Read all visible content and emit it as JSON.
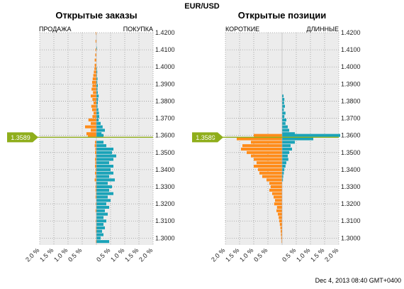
{
  "chart_data": {
    "type": "bar",
    "orientation": "horizontal",
    "title": "EUR/USD",
    "footer": "Dec 4, 2013 08:40 GMT+0400",
    "current_price": 1.3589,
    "current_price_label": "1.3589",
    "colors": {
      "left_side": "#ff8c1a",
      "right_side": "#1aa3b8",
      "price_line": "#8fae1b",
      "panel_bg": "#ececec"
    },
    "y_axis": {
      "range": [
        1.296,
        1.42
      ],
      "ticks": [
        1.42,
        1.41,
        1.4,
        1.39,
        1.38,
        1.37,
        1.36,
        1.35,
        1.34,
        1.33,
        1.32,
        1.31,
        1.3
      ],
      "tick_labels": [
        "1.4200",
        "1.4100",
        "1.4000",
        "1.3900",
        "1.3800",
        "1.3700",
        "1.3600",
        "1.3500",
        "1.3400",
        "1.3300",
        "1.3200",
        "1.3100",
        "1.3000"
      ]
    },
    "x_axis": {
      "range": [
        -2.0,
        2.0
      ],
      "ticks": [
        -2.0,
        -1.5,
        -1.0,
        -0.5,
        0.5,
        1.0,
        1.5,
        2.0
      ],
      "tick_labels": [
        "2.0 %",
        "1.5 %",
        "1.0 %",
        "0.5 %",
        "0.5 %",
        "1.0 %",
        "1.5 %",
        "2.0 %"
      ]
    },
    "grid": true,
    "panels": [
      {
        "title": "Открытые заказы",
        "left_label": "ПРОДАЖА",
        "right_label": "ПОКУПКА",
        "series": [
          {
            "name": "ПРОДАЖА",
            "points": [
              [
                1.4195,
                0.02
              ],
              [
                1.415,
                0.03
              ],
              [
                1.41,
                0.03
              ],
              [
                1.407,
                0.04
              ],
              [
                1.404,
                0.06
              ],
              [
                1.401,
                0.06
              ],
              [
                1.399,
                0.07
              ],
              [
                1.397,
                0.09
              ],
              [
                1.395,
                0.11
              ],
              [
                1.393,
                0.13
              ],
              [
                1.391,
                0.15
              ],
              [
                1.389,
                0.14
              ],
              [
                1.387,
                0.17
              ],
              [
                1.385,
                0.12
              ],
              [
                1.383,
                0.2
              ],
              [
                1.381,
                0.14
              ],
              [
                1.379,
                0.1
              ],
              [
                1.377,
                0.18
              ],
              [
                1.375,
                0.15
              ],
              [
                1.373,
                0.1
              ],
              [
                1.371,
                0.14
              ],
              [
                1.369,
                0.28
              ],
              [
                1.367,
                0.2
              ],
              [
                1.365,
                0.4
              ],
              [
                1.363,
                0.2
              ],
              [
                1.361,
                0.35
              ],
              [
                1.36,
                0.3
              ],
              [
                1.356,
                0.05
              ],
              [
                1.354,
                0.06
              ],
              [
                1.352,
                0.04
              ],
              [
                1.35,
                0.05
              ],
              [
                1.348,
                0.03
              ],
              [
                1.346,
                0.05
              ],
              [
                1.344,
                0.04
              ],
              [
                1.342,
                0.05
              ],
              [
                1.34,
                0.03
              ],
              [
                1.338,
                0.05
              ],
              [
                1.336,
                0.03
              ],
              [
                1.334,
                0.06
              ],
              [
                1.332,
                0.02
              ],
              [
                1.33,
                0.03
              ],
              [
                1.328,
                0.03
              ],
              [
                1.326,
                0.02
              ],
              [
                1.324,
                0.03
              ],
              [
                1.322,
                0.01
              ],
              [
                1.32,
                0.02
              ],
              [
                1.318,
                0.01
              ],
              [
                1.316,
                0.03
              ],
              [
                1.314,
                0.01
              ],
              [
                1.312,
                0.01
              ],
              [
                1.31,
                0.02
              ],
              [
                1.308,
                0.01
              ],
              [
                1.306,
                0.02
              ],
              [
                1.304,
                0.02
              ],
              [
                1.302,
                0.01
              ],
              [
                1.3,
                0.01
              ],
              [
                1.298,
                0.02
              ]
            ]
          },
          {
            "name": "ПОКУПКА",
            "points": [
              [
                1.411,
                0.02
              ],
              [
                1.399,
                0.02
              ],
              [
                1.397,
                0.03
              ],
              [
                1.395,
                0.02
              ],
              [
                1.393,
                0.04
              ],
              [
                1.391,
                0.03
              ],
              [
                1.389,
                0.05
              ],
              [
                1.387,
                0.04
              ],
              [
                1.385,
                0.05
              ],
              [
                1.383,
                0.08
              ],
              [
                1.381,
                0.06
              ],
              [
                1.379,
                0.05
              ],
              [
                1.377,
                0.04
              ],
              [
                1.375,
                0.07
              ],
              [
                1.373,
                0.09
              ],
              [
                1.371,
                0.1
              ],
              [
                1.369,
                0.08
              ],
              [
                1.367,
                0.15
              ],
              [
                1.365,
                0.22
              ],
              [
                1.363,
                0.3
              ],
              [
                1.361,
                0.18
              ],
              [
                1.36,
                0.25
              ],
              [
                1.356,
                0.25
              ],
              [
                1.354,
                0.35
              ],
              [
                1.352,
                0.6
              ],
              [
                1.35,
                0.55
              ],
              [
                1.348,
                0.7
              ],
              [
                1.346,
                0.6
              ],
              [
                1.344,
                0.45
              ],
              [
                1.342,
                0.6
              ],
              [
                1.34,
                0.5
              ],
              [
                1.338,
                0.6
              ],
              [
                1.336,
                0.45
              ],
              [
                1.334,
                0.65
              ],
              [
                1.332,
                0.4
              ],
              [
                1.33,
                0.55
              ],
              [
                1.328,
                0.45
              ],
              [
                1.326,
                0.6
              ],
              [
                1.324,
                0.4
              ],
              [
                1.322,
                0.5
              ],
              [
                1.32,
                0.35
              ],
              [
                1.318,
                0.45
              ],
              [
                1.316,
                0.3
              ],
              [
                1.314,
                0.4
              ],
              [
                1.312,
                0.25
              ],
              [
                1.31,
                0.35
              ],
              [
                1.308,
                0.25
              ],
              [
                1.306,
                0.3
              ],
              [
                1.304,
                0.2
              ],
              [
                1.302,
                0.25
              ],
              [
                1.3,
                0.15
              ],
              [
                1.298,
                0.45
              ]
            ]
          }
        ]
      },
      {
        "title": "Открытые позиции",
        "left_label": "КОРОТКИЕ",
        "right_label": "ДЛИННЫЕ",
        "series": [
          {
            "name": "КОРОТКИЕ",
            "points": [
              [
                1.36,
                1.0
              ],
              [
                1.358,
                1.6
              ],
              [
                1.356,
                1.1
              ],
              [
                1.354,
                1.4
              ],
              [
                1.352,
                1.45
              ],
              [
                1.35,
                1.25
              ],
              [
                1.348,
                1.1
              ],
              [
                1.346,
                1.0
              ],
              [
                1.344,
                0.9
              ],
              [
                1.342,
                1.0
              ],
              [
                1.34,
                0.85
              ],
              [
                1.338,
                0.8
              ],
              [
                1.336,
                0.7
              ],
              [
                1.334,
                0.55
              ],
              [
                1.332,
                0.45
              ],
              [
                1.33,
                0.4
              ],
              [
                1.328,
                0.45
              ],
              [
                1.326,
                0.35
              ],
              [
                1.324,
                0.3
              ],
              [
                1.322,
                0.25
              ],
              [
                1.32,
                0.28
              ],
              [
                1.318,
                0.18
              ],
              [
                1.316,
                0.2
              ],
              [
                1.314,
                0.15
              ],
              [
                1.312,
                0.12
              ],
              [
                1.31,
                0.1
              ],
              [
                1.308,
                0.08
              ],
              [
                1.306,
                0.06
              ],
              [
                1.304,
                0.05
              ],
              [
                1.302,
                0.04
              ],
              [
                1.3,
                0.03
              ],
              [
                1.298,
                0.02
              ]
            ]
          },
          {
            "name": "ДЛИННЫЕ",
            "points": [
              [
                1.383,
                0.05
              ],
              [
                1.381,
                0.08
              ],
              [
                1.379,
                0.07
              ],
              [
                1.377,
                0.1
              ],
              [
                1.375,
                0.06
              ],
              [
                1.373,
                0.12
              ],
              [
                1.371,
                0.08
              ],
              [
                1.369,
                0.15
              ],
              [
                1.367,
                0.12
              ],
              [
                1.365,
                0.2
              ],
              [
                1.363,
                0.25
              ],
              [
                1.361,
                0.45
              ],
              [
                1.36,
                2.05
              ],
              [
                1.358,
                1.1
              ],
              [
                1.356,
                0.45
              ],
              [
                1.354,
                0.3
              ],
              [
                1.352,
                0.35
              ],
              [
                1.35,
                0.25
              ],
              [
                1.348,
                0.2
              ],
              [
                1.346,
                0.22
              ],
              [
                1.344,
                0.15
              ],
              [
                1.342,
                0.12
              ],
              [
                1.34,
                0.08
              ],
              [
                1.338,
                0.06
              ],
              [
                1.336,
                0.04
              ],
              [
                1.334,
                0.03
              ]
            ]
          }
        ]
      }
    ]
  }
}
